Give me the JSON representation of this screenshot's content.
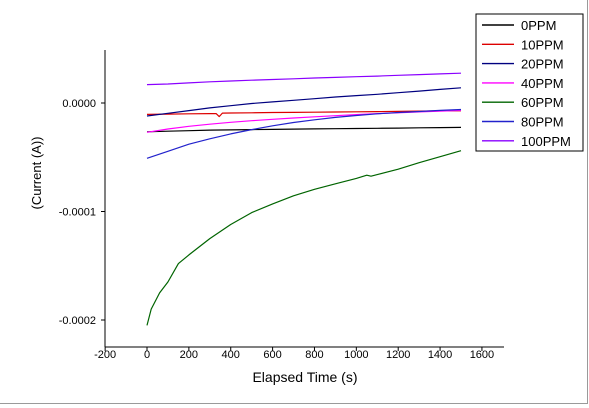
{
  "chart_data": {
    "type": "line",
    "title": "",
    "xlabel": "Elapsed Time (s)",
    "ylabel": "(Current (A))",
    "xlim": [
      -200,
      1600
    ],
    "ylim": [
      -0.00022,
      5e-05
    ],
    "x_ticks": [
      -200,
      0,
      200,
      400,
      600,
      800,
      1000,
      1200,
      1400,
      1600
    ],
    "x_tick_labels": [
      "-200",
      "0",
      "200",
      "400",
      "600",
      "800",
      "1000",
      "1200",
      "1400",
      "1600"
    ],
    "y_ticks": [
      0.0,
      -0.0001,
      -0.0002
    ],
    "y_tick_labels": [
      "0.0000",
      "-0.0001",
      "-0.0002"
    ],
    "grid": false,
    "legend_position": "top-right",
    "series": [
      {
        "name": "0PPM",
        "color": "#000000",
        "x": [
          0,
          100,
          200,
          300,
          400,
          500,
          600,
          700,
          800,
          900,
          1000,
          1100,
          1200,
          1300,
          1400,
          1500
        ],
        "y": [
          -2.65e-05,
          -2.6e-05,
          -2.55e-05,
          -2.5e-05,
          -2.48e-05,
          -2.45e-05,
          -2.43e-05,
          -2.41e-05,
          -2.39e-05,
          -2.37e-05,
          -2.35e-05,
          -2.33e-05,
          -2.31e-05,
          -2.29e-05,
          -2.27e-05,
          -2.25e-05
        ]
      },
      {
        "name": "10PPM",
        "color": "#dd0000",
        "x": [
          0,
          100,
          200,
          300,
          330,
          345,
          360,
          400,
          500,
          600,
          700,
          800,
          900,
          1000,
          1100,
          1200,
          1300,
          1400,
          1500
        ],
        "y": [
          -1.05e-05,
          -1.02e-05,
          -1e-05,
          -9.8e-06,
          -9.8e-06,
          -1.25e-05,
          -9.3e-06,
          -9.2e-06,
          -9e-06,
          -8.8e-06,
          -8.7e-06,
          -8.5e-06,
          -8.3e-06,
          -8.1e-06,
          -7.9e-06,
          -7.7e-06,
          -7.5e-06,
          -7.3e-06,
          -7.2e-06
        ]
      },
      {
        "name": "20PPM",
        "color": "#000080",
        "x": [
          0,
          100,
          200,
          300,
          400,
          500,
          600,
          700,
          800,
          900,
          1000,
          1100,
          1200,
          1300,
          1400,
          1500
        ],
        "y": [
          -1.2e-05,
          -9.5e-06,
          -7e-06,
          -4.5e-06,
          -2.5e-06,
          -5e-07,
          1e-06,
          2.5e-06,
          4e-06,
          5.5e-06,
          6.8e-06,
          8e-06,
          9.5e-06,
          1.1e-05,
          1.25e-05,
          1.4e-05
        ]
      },
      {
        "name": "40PPM",
        "color": "#ff00ff",
        "x": [
          0,
          100,
          200,
          300,
          400,
          500,
          600,
          700,
          800,
          900,
          1000,
          1100,
          1200,
          1300,
          1400,
          1500
        ],
        "y": [
          -2.7e-05,
          -2.4e-05,
          -2.15e-05,
          -1.95e-05,
          -1.78e-05,
          -1.63e-05,
          -1.5e-05,
          -1.38e-05,
          -1.27e-05,
          -1.17e-05,
          -1.07e-05,
          -9.8e-06,
          -9e-06,
          -8.2e-06,
          -7.5e-06,
          -6.8e-06
        ]
      },
      {
        "name": "60PPM",
        "color": "#006400",
        "x": [
          0,
          20,
          60,
          100,
          150,
          200,
          300,
          400,
          500,
          600,
          700,
          800,
          900,
          1000,
          1050,
          1070,
          1100,
          1200,
          1300,
          1400,
          1500
        ],
        "y": [
          -0.000205,
          -0.00019,
          -0.000175,
          -0.000165,
          -0.000148,
          -0.00014,
          -0.000125,
          -0.000112,
          -0.000101,
          -9.3e-05,
          -8.55e-05,
          -7.95e-05,
          -7.45e-05,
          -6.95e-05,
          -6.65e-05,
          -6.75e-05,
          -6.6e-05,
          -6.1e-05,
          -5.5e-05,
          -4.95e-05,
          -4.4e-05
        ]
      },
      {
        "name": "80PPM",
        "color": "#2222cc",
        "x": [
          0,
          100,
          200,
          300,
          400,
          500,
          600,
          700,
          800,
          900,
          1000,
          1100,
          1200,
          1300,
          1400,
          1500
        ],
        "y": [
          -5.1e-05,
          -4.45e-05,
          -3.8e-05,
          -3.3e-05,
          -2.85e-05,
          -2.45e-05,
          -2.1e-05,
          -1.8e-05,
          -1.55e-05,
          -1.33e-05,
          -1.15e-05,
          -1e-05,
          -8.8e-06,
          -7.8e-06,
          -6.8e-06,
          -6e-06
        ]
      },
      {
        "name": "100PPM",
        "color": "#8a00ff",
        "x": [
          0,
          100,
          200,
          300,
          400,
          500,
          600,
          700,
          800,
          900,
          1000,
          1100,
          1200,
          1300,
          1400,
          1500
        ],
        "y": [
          1.7e-05,
          1.75e-05,
          1.85e-05,
          1.95e-05,
          2.03e-05,
          2.1e-05,
          2.17e-05,
          2.23e-05,
          2.3e-05,
          2.36e-05,
          2.42e-05,
          2.48e-05,
          2.55e-05,
          2.62e-05,
          2.68e-05,
          2.75e-05
        ]
      }
    ]
  }
}
